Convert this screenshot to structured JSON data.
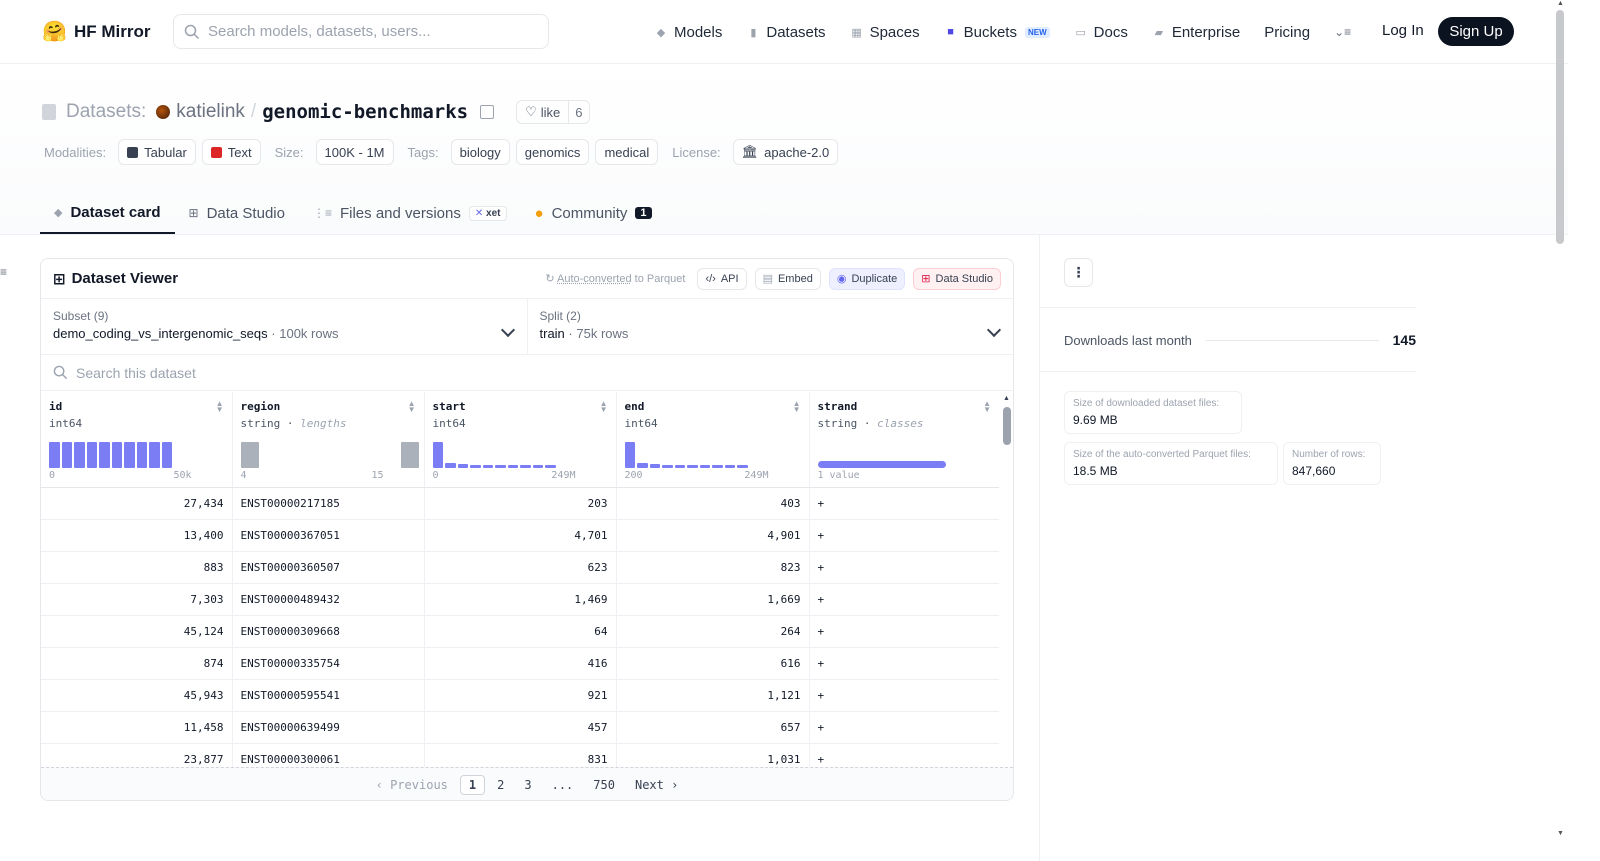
{
  "nav": {
    "brand": "HF Mirror",
    "search_placeholder": "Search models, datasets, users...",
    "links": [
      {
        "label": "Models",
        "icon": "cube-icon"
      },
      {
        "label": "Datasets",
        "icon": "database-icon"
      },
      {
        "label": "Spaces",
        "icon": "grid-icon"
      },
      {
        "label": "Buckets",
        "icon": "bucket-icon",
        "badge": "NEW"
      },
      {
        "label": "Docs",
        "icon": "book-icon"
      },
      {
        "label": "Enterprise",
        "icon": "enterprise-icon"
      },
      {
        "label": "Pricing"
      }
    ],
    "login": "Log In",
    "signup": "Sign Up"
  },
  "header": {
    "prefix": "Datasets:",
    "user": "katielink",
    "repo": "genomic-benchmarks",
    "like_label": "like",
    "like_count": "6",
    "modalities_label": "Modalities:",
    "modalities": [
      {
        "label": "Tabular",
        "color": "#374151"
      },
      {
        "label": "Text",
        "color": "#dc2626"
      }
    ],
    "size_label": "Size:",
    "size": "100K - 1M",
    "tags_label": "Tags:",
    "tags": [
      "biology",
      "genomics",
      "medical"
    ],
    "license_label": "License:",
    "license": "apache-2.0"
  },
  "tabs": [
    {
      "label": "Dataset card",
      "icon": "cube-icon"
    },
    {
      "label": "Data Studio",
      "icon": "table-icon"
    },
    {
      "label": "Files and versions",
      "icon": "files-icon",
      "badge": "xet"
    },
    {
      "label": "Community",
      "icon": "community-icon",
      "count": "1"
    }
  ],
  "viewer": {
    "title": "Dataset Viewer",
    "auto_converted_prefix": "Auto-converted",
    "auto_converted_suffix": " to Parquet",
    "api": "API",
    "embed": "Embed",
    "duplicate": "Duplicate",
    "data_studio": "Data Studio",
    "subset_label": "Subset (9)",
    "subset_value": "demo_coding_vs_intergenomic_seqs",
    "subset_rows": "100k rows",
    "split_label": "Split (2)",
    "split_value": "train",
    "split_rows": "75k rows",
    "search_placeholder": "Search this dataset",
    "columns": [
      {
        "name": "id",
        "type": "int64",
        "sub": "",
        "min": "0",
        "max": "50k",
        "kind": "bars",
        "hist": [
          1,
          1,
          1,
          1,
          1,
          1,
          1,
          1,
          1,
          1
        ]
      },
      {
        "name": "region",
        "type": "string",
        "sub": "lengths",
        "min": "4",
        "max": "15",
        "kind": "gray",
        "hist": [
          1,
          0,
          0,
          0,
          0,
          0,
          0,
          0,
          1
        ]
      },
      {
        "name": "start",
        "type": "int64",
        "sub": "",
        "min": "0",
        "max": "249M",
        "kind": "bars",
        "hist": [
          1,
          0.18,
          0.14,
          0.12,
          0.1,
          0.08,
          0.07,
          0.06,
          0.05,
          0.04
        ]
      },
      {
        "name": "end",
        "type": "int64",
        "sub": "",
        "min": "200",
        "max": "249M",
        "kind": "bars",
        "hist": [
          1,
          0.18,
          0.14,
          0.12,
          0.1,
          0.08,
          0.07,
          0.06,
          0.05,
          0.04
        ]
      },
      {
        "name": "strand",
        "type": "string",
        "sub": "classes",
        "min": "1 value",
        "max": "",
        "kind": "classes",
        "hist": [
          1
        ]
      }
    ],
    "rows": [
      [
        "27,434",
        "ENST00000217185",
        "203",
        "403",
        "+"
      ],
      [
        "13,400",
        "ENST00000367051",
        "4,701",
        "4,901",
        "+"
      ],
      [
        "883",
        "ENST00000360507",
        "623",
        "823",
        "+"
      ],
      [
        "7,303",
        "ENST00000489432",
        "1,469",
        "1,669",
        "+"
      ],
      [
        "45,124",
        "ENST00000309668",
        "64",
        "264",
        "+"
      ],
      [
        "874",
        "ENST00000335754",
        "416",
        "616",
        "+"
      ],
      [
        "45,943",
        "ENST00000595541",
        "921",
        "1,121",
        "+"
      ],
      [
        "11,458",
        "ENST00000639499",
        "457",
        "657",
        "+"
      ],
      [
        "23,877",
        "ENST00000300061",
        "831",
        "1,031",
        "+"
      ]
    ],
    "pager": {
      "previous": "Previous",
      "pages": [
        "1",
        "2",
        "3",
        "...",
        "750"
      ],
      "current": "1",
      "next": "Next"
    }
  },
  "sidebar": {
    "downloads_label": "Downloads last month",
    "downloads": "145",
    "stats": [
      {
        "label": "Size of downloaded dataset files:",
        "value": "9.69 MB"
      },
      {
        "label": "Size of the auto-converted Parquet files:",
        "value": "18.5 MB"
      },
      {
        "label": "Number of rows:",
        "value": "847,660"
      }
    ]
  }
}
